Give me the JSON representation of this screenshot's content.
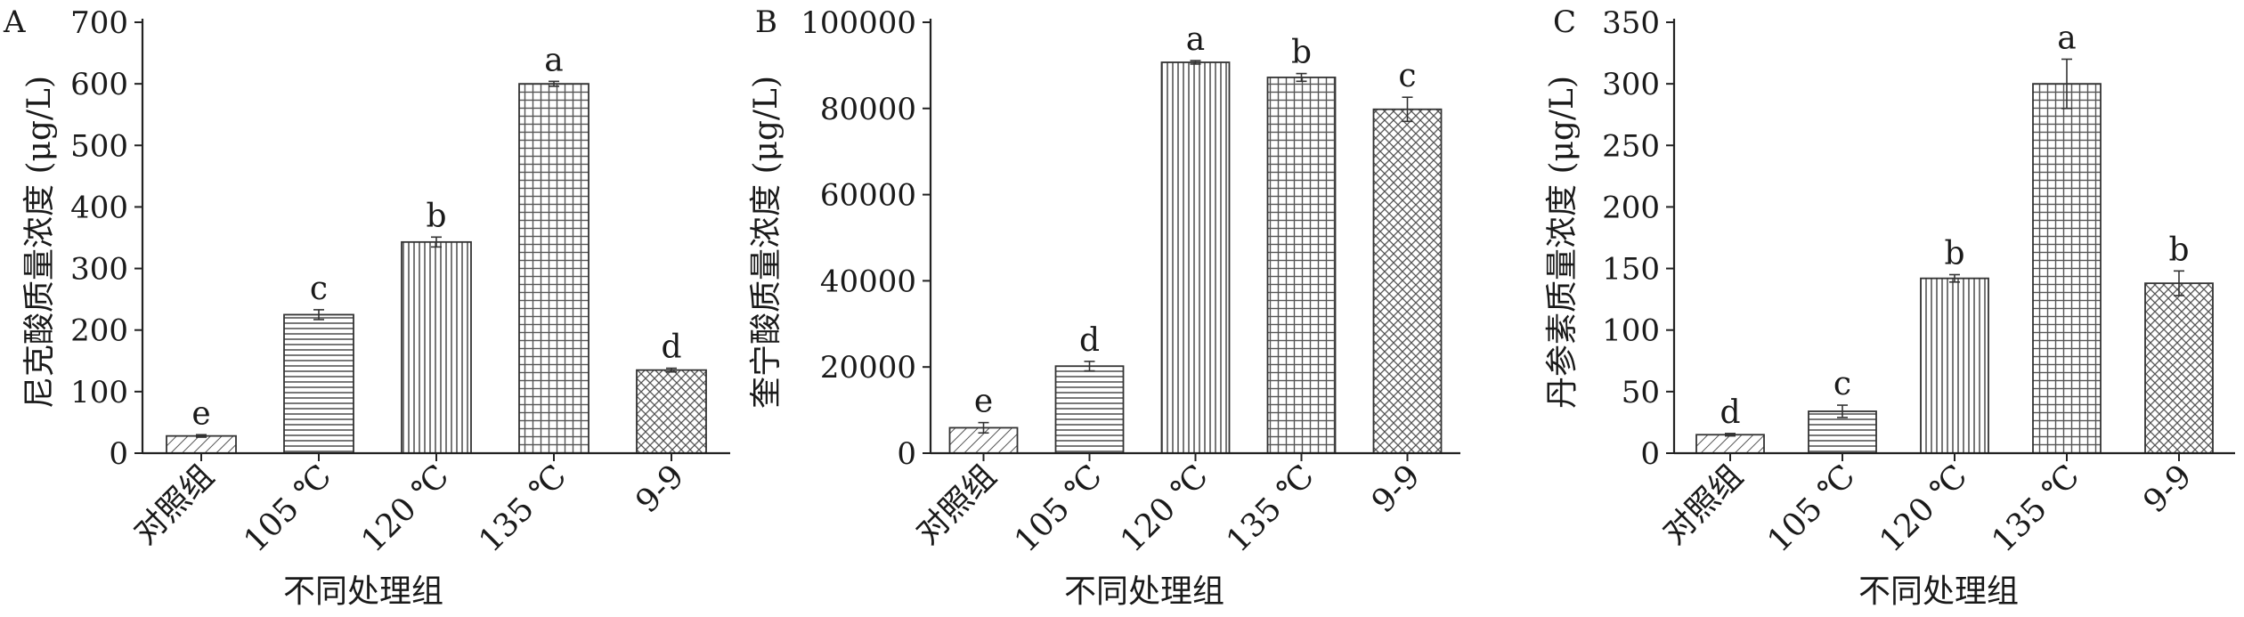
{
  "panels": [
    {
      "label": "A",
      "ylabel": "尼克酸质量浓度 (μg/L)",
      "xlabel": "不同处理组",
      "yticks": [
        "0",
        "100",
        "200",
        "300",
        "400",
        "500",
        "600",
        "700"
      ]
    },
    {
      "label": "B",
      "ylabel": "奎宁酸质量浓度 (μg/L)",
      "xlabel": "不同处理组",
      "yticks": [
        "0",
        "20000",
        "40000",
        "60000",
        "80000",
        "100000"
      ]
    },
    {
      "label": "C",
      "ylabel": "丹参素质量浓度 (μg/L)",
      "xlabel": "不同处理组",
      "yticks": [
        "0",
        "50",
        "100",
        "150",
        "200",
        "250",
        "300",
        "350"
      ]
    }
  ],
  "chart_data": [
    {
      "type": "bar",
      "categories": [
        "对照组",
        "105 ℃",
        "120 ℃",
        "135 ℃",
        "9-9"
      ],
      "values": [
        28,
        225,
        343,
        600,
        135
      ],
      "errors": [
        2,
        8,
        8,
        4,
        3
      ],
      "significance": [
        "e",
        "c",
        "b",
        "a",
        "d"
      ],
      "patterns": [
        "diagonal",
        "horizontal",
        "vertical",
        "grid",
        "crosshatch"
      ],
      "title": "A",
      "xlabel": "不同处理组",
      "ylabel": "尼克酸质量浓度 (μg/L)",
      "ylim": [
        0,
        700
      ],
      "ytick_step": 100
    },
    {
      "type": "bar",
      "categories": [
        "对照组",
        "105 ℃",
        "120 ℃",
        "135 ℃",
        "9-9"
      ],
      "values": [
        5900,
        20200,
        90700,
        87200,
        79800
      ],
      "errors": [
        1200,
        1100,
        400,
        900,
        2800
      ],
      "significance": [
        "e",
        "d",
        "a",
        "b",
        "c"
      ],
      "patterns": [
        "diagonal",
        "horizontal",
        "vertical",
        "grid",
        "crosshatch"
      ],
      "title": "B",
      "xlabel": "不同处理组",
      "ylabel": "奎宁酸质量浓度 (μg/L)",
      "ylim": [
        0,
        100000
      ],
      "ytick_step": 20000
    },
    {
      "type": "bar",
      "categories": [
        "对照组",
        "105 ℃",
        "120 ℃",
        "135 ℃",
        "9-9"
      ],
      "values": [
        15,
        34,
        142,
        300,
        138
      ],
      "errors": [
        1,
        5,
        3,
        20,
        10
      ],
      "significance": [
        "d",
        "c",
        "b",
        "a",
        "b"
      ],
      "patterns": [
        "diagonal",
        "horizontal",
        "vertical",
        "grid",
        "crosshatch"
      ],
      "title": "C",
      "xlabel": "不同处理组",
      "ylabel": "丹参素质量浓度 (μg/L)",
      "ylim": [
        0,
        350
      ],
      "ytick_step": 50
    }
  ]
}
